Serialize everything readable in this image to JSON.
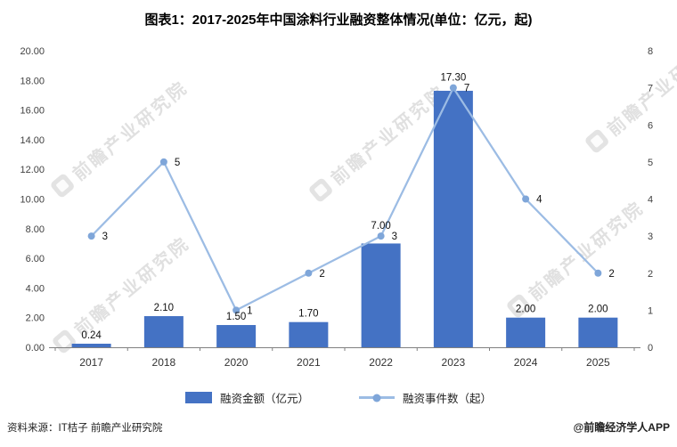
{
  "watermark": {
    "text": "前瞻产业研究院"
  },
  "chart_data": {
    "type": "combo-bar-line",
    "title": "图表1：2017-2025年中国涂料行业融资整体情况(单位：亿元，起)",
    "categories": [
      "2017",
      "2018",
      "2020",
      "2021",
      "2022",
      "2023",
      "2024",
      "2025"
    ],
    "series": [
      {
        "name": "融资金额（亿元）",
        "type": "bar",
        "axis": "left",
        "color": "#4472C4",
        "values": [
          0.24,
          2.1,
          1.5,
          1.7,
          7.0,
          17.3,
          2.0,
          2.0
        ],
        "labels": [
          "0.24",
          "2.10",
          "1.50",
          "1.70",
          "7.00",
          "17.30",
          "2.00",
          "2.00"
        ]
      },
      {
        "name": "融资事件数（起）",
        "type": "line",
        "axis": "right",
        "color": "#9CBCE4",
        "marker_color": "#7FA6D9",
        "values": [
          3,
          5,
          1,
          2,
          3,
          7,
          4,
          2
        ],
        "labels": [
          "3",
          "5",
          "1",
          "2",
          "3",
          "7",
          "4",
          "2"
        ]
      }
    ],
    "left_axis": {
      "min": 0,
      "max": 20,
      "step": 2,
      "tick_labels": [
        "0.00",
        "2.00",
        "4.00",
        "6.00",
        "8.00",
        "10.00",
        "12.00",
        "14.00",
        "16.00",
        "18.00",
        "20.00"
      ]
    },
    "right_axis": {
      "min": 0,
      "max": 8,
      "step": 1,
      "tick_labels": [
        "0",
        "1",
        "2",
        "3",
        "4",
        "5",
        "6",
        "7",
        "8"
      ]
    },
    "legend_position": "bottom",
    "grid": false
  },
  "footer": {
    "source": "资料来源：IT桔子 前瞻产业研究院",
    "credit": "@前瞻经济学人APP"
  }
}
